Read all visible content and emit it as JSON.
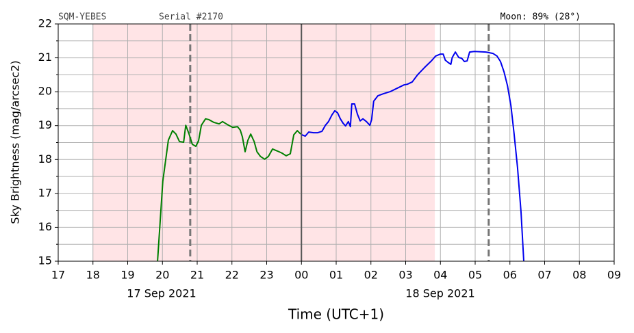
{
  "chart_data": {
    "type": "line",
    "header_left": "SQM-YEBES",
    "header_serial": "Serial #2170",
    "header_moon": "Moon: 89% (28°)",
    "xlabel": "Time (UTC+1)",
    "ylabel": "Sky Brightness (mag/arcsec2)",
    "date_labels": [
      "17 Sep 2021",
      "18 Sep 2021"
    ],
    "xlim": [
      17,
      33
    ],
    "xticks": [
      17,
      18,
      19,
      20,
      21,
      22,
      23,
      {
        "value": 24,
        "label": "00"
      },
      {
        "value": 25,
        "label": "01"
      },
      {
        "value": 26,
        "label": "02"
      },
      {
        "value": 27,
        "label": "03"
      },
      {
        "value": 28,
        "label": "04"
      },
      {
        "value": 29,
        "label": "05"
      },
      {
        "value": 30,
        "label": "06"
      },
      {
        "value": 31,
        "label": "07"
      },
      {
        "value": 32,
        "label": "08"
      },
      {
        "value": 33,
        "label": "09"
      }
    ],
    "ylim": [
      15,
      22
    ],
    "yticks": [
      15,
      16,
      17,
      18,
      19,
      20,
      21,
      22
    ],
    "yminorticks": [
      15.5,
      16.5,
      17.5,
      18.5,
      19.5,
      20.5,
      21.5
    ],
    "grid": true,
    "shade": [
      18,
      27.84
    ],
    "shade_color": "#ffe4e6",
    "dashed_lines": [
      20.8,
      29.39
    ],
    "solid_lines": [
      24
    ],
    "series": [
      {
        "color": "#008000",
        "x": [
          19.86,
          20.01,
          20.17,
          20.29,
          20.39,
          20.49,
          20.61,
          20.67,
          20.76,
          20.86,
          20.96,
          21.04,
          21.12,
          21.24,
          21.33,
          21.47,
          21.63,
          21.73,
          21.87,
          22.02,
          22.16,
          22.24,
          22.3,
          22.38,
          22.46,
          22.54,
          22.64,
          22.72,
          22.82,
          22.94,
          23.05,
          23.17,
          23.31,
          23.44,
          23.56,
          23.68,
          23.78,
          23.88,
          23.98
        ],
        "values": [
          15.0,
          17.36,
          18.57,
          18.85,
          18.75,
          18.53,
          18.51,
          19.01,
          18.77,
          18.45,
          18.39,
          18.55,
          19.01,
          19.2,
          19.18,
          19.1,
          19.05,
          19.12,
          19.03,
          18.95,
          18.97,
          18.87,
          18.67,
          18.23,
          18.57,
          18.75,
          18.53,
          18.23,
          18.09,
          18.01,
          18.09,
          18.31,
          18.25,
          18.19,
          18.11,
          18.17,
          18.73,
          18.85,
          18.75
        ]
      },
      {
        "color": "#0000ee",
        "x": [
          24.01,
          24.11,
          24.21,
          24.35,
          24.47,
          24.59,
          24.69,
          24.78,
          24.88,
          24.96,
          25.04,
          25.12,
          25.2,
          25.27,
          25.35,
          25.41,
          25.45,
          25.53,
          25.61,
          25.69,
          25.77,
          25.87,
          25.97,
          26.02,
          26.08,
          26.2,
          26.36,
          26.55,
          26.75,
          26.95,
          27.05,
          27.19,
          27.35,
          27.54,
          27.74,
          27.86,
          28.0,
          28.08,
          28.14,
          28.24,
          28.3,
          28.34,
          28.43,
          28.53,
          28.61,
          28.69,
          28.77,
          28.84,
          28.98,
          29.31,
          29.51,
          29.63,
          29.73,
          29.83,
          29.93,
          30.03,
          30.12,
          30.22,
          30.32,
          30.4
        ],
        "values": [
          18.73,
          18.69,
          18.81,
          18.79,
          18.79,
          18.83,
          19.01,
          19.12,
          19.32,
          19.44,
          19.38,
          19.2,
          19.07,
          18.99,
          19.12,
          18.97,
          19.64,
          19.64,
          19.34,
          19.14,
          19.2,
          19.12,
          19.01,
          19.18,
          19.72,
          19.88,
          19.94,
          20.0,
          20.1,
          20.2,
          20.22,
          20.29,
          20.51,
          20.71,
          20.91,
          21.05,
          21.11,
          21.11,
          20.93,
          20.85,
          20.81,
          21.01,
          21.17,
          21.01,
          20.99,
          20.89,
          20.91,
          21.17,
          21.19,
          21.17,
          21.13,
          21.05,
          20.89,
          20.59,
          20.18,
          19.58,
          18.77,
          17.76,
          16.45,
          15.0
        ]
      }
    ]
  }
}
